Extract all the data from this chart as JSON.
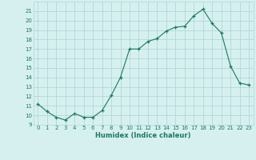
{
  "x": [
    0,
    1,
    2,
    3,
    4,
    5,
    6,
    7,
    8,
    9,
    10,
    11,
    12,
    13,
    14,
    15,
    16,
    17,
    18,
    19,
    20,
    21,
    22,
    23
  ],
  "y": [
    11.2,
    10.4,
    9.8,
    9.5,
    10.2,
    9.8,
    9.8,
    10.5,
    12.1,
    14.0,
    17.0,
    17.0,
    17.8,
    18.1,
    18.9,
    19.3,
    19.4,
    20.5,
    21.2,
    19.7,
    18.7,
    15.2,
    13.4,
    13.2
  ],
  "xlabel": "Humidex (Indice chaleur)",
  "ylim": [
    9,
    22
  ],
  "xlim": [
    -0.5,
    23.5
  ],
  "yticks": [
    9,
    10,
    11,
    12,
    13,
    14,
    15,
    16,
    17,
    18,
    19,
    20,
    21
  ],
  "xticks": [
    0,
    1,
    2,
    3,
    4,
    5,
    6,
    7,
    8,
    9,
    10,
    11,
    12,
    13,
    14,
    15,
    16,
    17,
    18,
    19,
    20,
    21,
    22,
    23
  ],
  "line_color": "#1a7a5e",
  "marker_color": "#1a7a5e",
  "bg_color": "#d6f0f0",
  "grid_color": "#b0d8d8",
  "xlabel_fontsize": 6,
  "tick_fontsize": 5
}
